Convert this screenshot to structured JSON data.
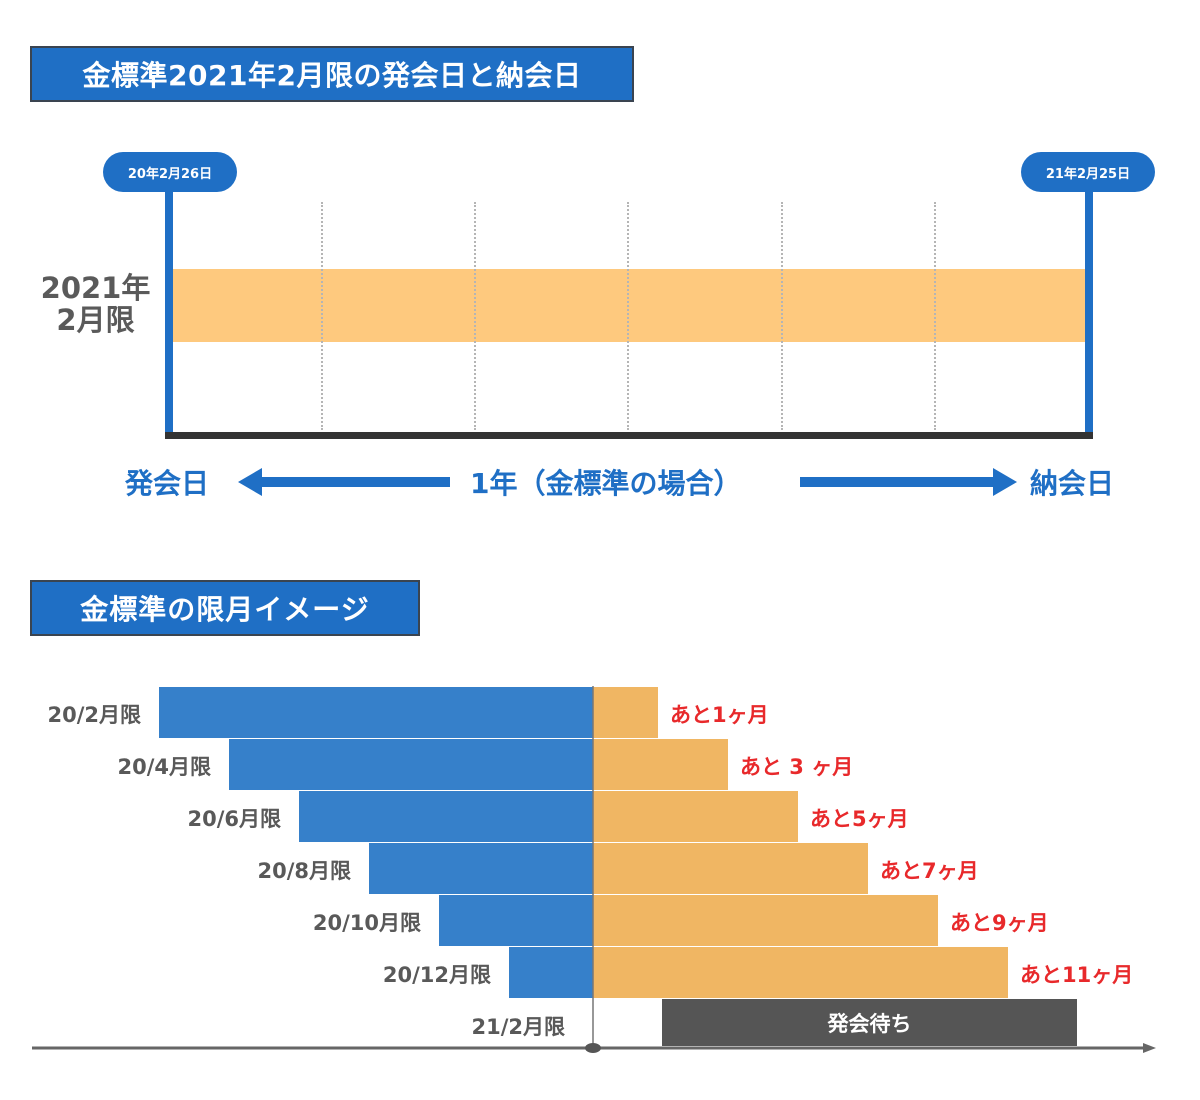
{
  "section1": {
    "title": "金標準2021年2月限の発会日と納会日",
    "start_date": "20年2月26日",
    "end_date": "21年2月25日",
    "contract_label_line1": "2021年",
    "contract_label_line2": "2月限",
    "issue_day": "発会日",
    "span_text": "1年（金標準の場合）",
    "delivery_day": "納会日"
  },
  "section2": {
    "title": "金標準の限月イメージ",
    "waiting_label": "発会待ち"
  },
  "colors": {
    "blue": "#1f6fc5",
    "bar_blue": "#3680ca",
    "orange_band": "#fec97e",
    "bar_orange": "#f0b663",
    "dark": "#555555",
    "red": "#e8292b"
  },
  "chart_data": [
    {
      "type": "table",
      "title": "金標準2021年2月限の発会日と納会日",
      "rows": [
        {
          "contract": "2021年2月限",
          "start": "20年2月26日",
          "end": "21年2月25日",
          "period": "1年（金標準の場合）"
        }
      ]
    },
    {
      "type": "bar",
      "title": "金標準の限月イメージ",
      "orientation": "horizontal-diverging",
      "categories": [
        "20/2月限",
        "20/4月限",
        "20/6月限",
        "20/8月限",
        "20/10月限",
        "20/12月限",
        "21/2月限"
      ],
      "series": [
        {
          "name": "elapsed_months",
          "values": [
            11,
            9,
            7,
            5,
            3,
            1,
            0
          ]
        },
        {
          "name": "remaining_months",
          "values": [
            1,
            3,
            5,
            7,
            9,
            11,
            0
          ]
        },
        {
          "name": "waiting_months",
          "values": [
            0,
            0,
            0,
            0,
            0,
            0,
            12
          ]
        }
      ],
      "remaining_labels": [
        "あと1ヶ月",
        "あと 3 ヶ月",
        "あと5ヶ月",
        "あと7ヶ月",
        "あと9ヶ月",
        "あと11ヶ月"
      ],
      "waiting_label": "発会待ち",
      "xlabel": "",
      "ylabel": ""
    }
  ]
}
